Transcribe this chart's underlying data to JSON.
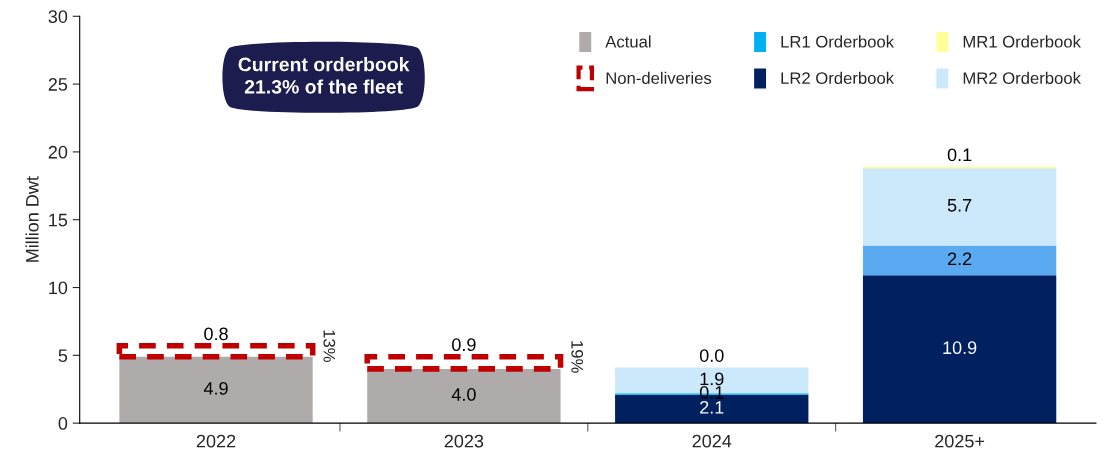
{
  "chart_data": {
    "type": "bar",
    "stacked": true,
    "ylabel": "Million Dwt",
    "categories": [
      "2022",
      "2023",
      "2024",
      "2025+"
    ],
    "series": [
      {
        "name": "Actual",
        "color": "#afabab",
        "values": [
          4.9,
          4.0,
          null,
          null
        ],
        "value_labels": [
          "4.9",
          "4.0",
          null,
          null
        ]
      },
      {
        "name": "Non-deliveries",
        "color": "#c00000",
        "line_style": "dashed",
        "values": [
          0.8,
          0.9,
          null,
          null
        ],
        "value_labels": [
          "0.8",
          "0.9",
          null,
          null
        ]
      },
      {
        "name": "LR2 Orderbook",
        "color": "#002060",
        "values": [
          null,
          null,
          2.1,
          10.9
        ],
        "value_labels": [
          null,
          null,
          "2.1",
          "10.9"
        ]
      },
      {
        "name": "LR1 Orderbook",
        "color": "#00b0f0",
        "colors": [
          "#00b0f0",
          "#00b0f0",
          "#00b0f0",
          "#5aaaf2"
        ],
        "values": [
          null,
          null,
          0.1,
          2.2
        ],
        "value_labels": [
          null,
          null,
          "0.1",
          "2.2"
        ]
      },
      {
        "name": "MR2 Orderbook",
        "color": "#cce9fb",
        "values": [
          null,
          null,
          1.9,
          5.7
        ],
        "value_labels": [
          null,
          null,
          "1.9",
          "5.7"
        ]
      },
      {
        "name": "MR1 Orderbook",
        "color": "#ffff99",
        "values": [
          null,
          null,
          0.0,
          0.1
        ],
        "value_labels": [
          null,
          null,
          "0.0",
          "0.1"
        ]
      }
    ],
    "ylim": [
      0,
      30
    ],
    "yticks": [
      0,
      5,
      10,
      15,
      20,
      25,
      30
    ],
    "grid": false,
    "legend": "top right",
    "annotations": [
      "Current orderbook\n21.3% of the fleet",
      "13%",
      "19%"
    ]
  }
}
